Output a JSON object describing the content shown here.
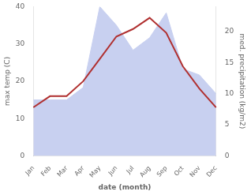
{
  "chart_data": {
    "type": "line",
    "xlabel": "date (month)",
    "ylabel": "max temp (C)",
    "y2label": "med. precipitation (kg/m2)",
    "categories": [
      "Jan",
      "Feb",
      "Mar",
      "Apr",
      "May",
      "Jun",
      "Jul",
      "Aug",
      "Sep",
      "Oct",
      "Nov",
      "Dec"
    ],
    "series": [
      {
        "type": "area",
        "color": "#c8d0f0",
        "axis": "y2",
        "values": [
          9,
          9,
          9,
          11,
          24,
          21,
          17,
          19,
          23,
          14,
          13,
          10
        ]
      },
      {
        "type": "line",
        "color": "#b03030",
        "values": [
          13,
          16,
          16,
          20,
          26,
          32,
          34,
          37,
          33,
          24,
          18,
          13
        ]
      }
    ],
    "ylim": [
      0,
      40
    ],
    "yticks": [
      0,
      10,
      20,
      30,
      40
    ],
    "y2lim": [
      0,
      24
    ],
    "y2ticks": [
      0,
      5,
      10,
      15,
      20
    ],
    "grid": false
  }
}
